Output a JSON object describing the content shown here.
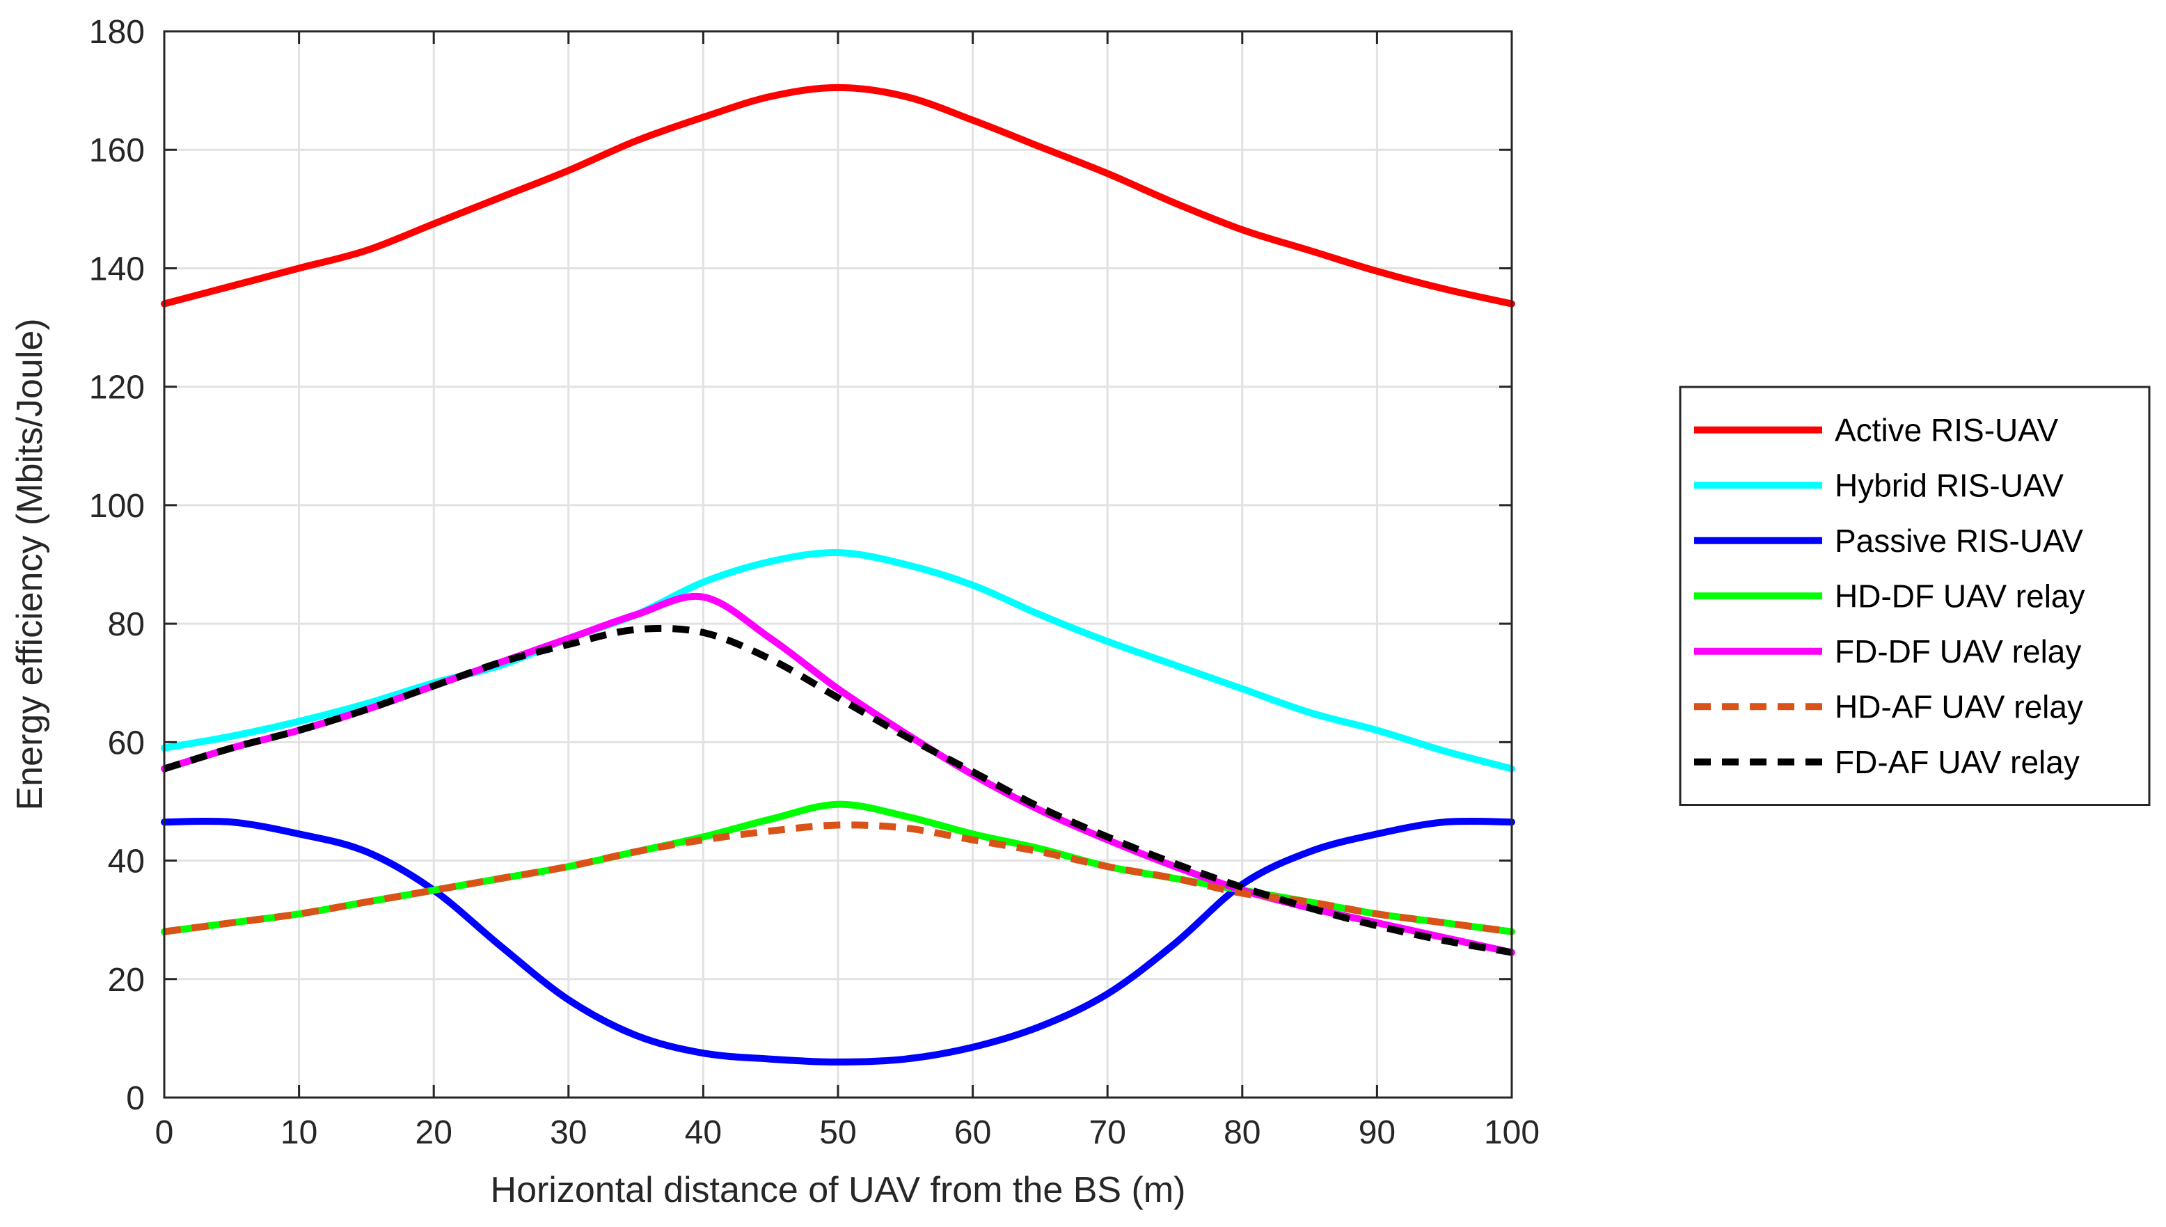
{
  "chart_data": {
    "type": "line",
    "title": "",
    "xlabel": "Horizontal distance of UAV from the BS (m)",
    "ylabel": "Energy efficiency (Mbits/Joule)",
    "xlim": [
      0,
      100
    ],
    "ylim": [
      0,
      180
    ],
    "xticks": [
      0,
      10,
      20,
      30,
      40,
      50,
      60,
      70,
      80,
      90,
      100
    ],
    "yticks": [
      0,
      20,
      40,
      60,
      80,
      100,
      120,
      140,
      160,
      180
    ],
    "grid": true,
    "legend_position": "outside-right",
    "x": [
      0,
      5,
      10,
      15,
      20,
      25,
      30,
      35,
      40,
      45,
      50,
      55,
      60,
      65,
      70,
      75,
      80,
      85,
      90,
      95,
      100
    ],
    "series": [
      {
        "name": "Active RIS-UAV",
        "color": "#ff0000",
        "dash": "solid",
        "values": [
          134,
          137,
          140,
          143,
          147.5,
          152,
          156.5,
          161.5,
          165.5,
          169,
          170.5,
          169,
          165,
          160.5,
          156,
          151,
          146.5,
          143,
          139.5,
          136.5,
          134
        ]
      },
      {
        "name": "Hybrid RIS-UAV",
        "color": "#00ffff",
        "dash": "solid",
        "values": [
          59,
          61,
          63.5,
          66.5,
          70,
          73,
          77.5,
          81.5,
          87,
          90.5,
          92,
          90,
          86.5,
          81.5,
          77,
          73,
          69,
          65,
          62,
          58.5,
          55.5
        ]
      },
      {
        "name": "Passive RIS-UAV",
        "color": "#0000ff",
        "dash": "solid",
        "values": [
          46.5,
          46.5,
          44.5,
          41.5,
          35,
          25.5,
          16.5,
          10.5,
          7.5,
          6.5,
          6,
          6.5,
          8.5,
          12,
          17.5,
          26,
          36,
          41.5,
          44.5,
          46.5,
          46.5
        ]
      },
      {
        "name": "HD-DF UAV relay",
        "color": "#00ff00",
        "dash": "solid",
        "values": [
          28,
          29.5,
          31,
          33,
          35,
          37,
          39,
          41.5,
          44,
          47,
          49.5,
          47.5,
          44.5,
          42,
          39,
          37,
          35,
          33,
          31,
          29.5,
          28
        ]
      },
      {
        "name": "FD-DF UAV relay",
        "color": "#ff00ff",
        "dash": "solid",
        "values": [
          55.5,
          59,
          62,
          65.5,
          69.5,
          73.5,
          77.5,
          81.5,
          84.5,
          77.5,
          69,
          61.5,
          54.5,
          48.5,
          43.5,
          39,
          35,
          32,
          29.5,
          27,
          24.5
        ]
      },
      {
        "name": "HD-AF UAV relay",
        "color": "#d95319",
        "dash": "dashed",
        "values": [
          28,
          29.5,
          31,
          33,
          35,
          37,
          39,
          41.5,
          43.5,
          45,
          46,
          45.5,
          43.5,
          41.5,
          39,
          37,
          34.5,
          33,
          31,
          29.5,
          28
        ]
      },
      {
        "name": "FD-AF UAV relay",
        "color": "#000000",
        "dash": "dashed",
        "values": [
          55.5,
          59,
          62,
          65.5,
          69.5,
          73.5,
          76.5,
          79,
          78.5,
          74,
          67.5,
          61,
          55,
          49,
          44,
          39.5,
          35.5,
          32,
          29,
          26.5,
          24.5
        ]
      }
    ]
  }
}
